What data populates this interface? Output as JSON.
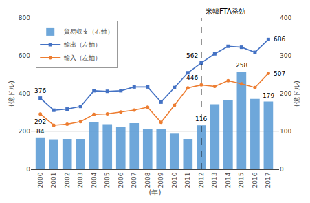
{
  "chart_data": {
    "type": "bar",
    "x": [
      2000,
      2001,
      2002,
      2003,
      2004,
      2005,
      2006,
      2007,
      2008,
      2009,
      2010,
      2011,
      2012,
      2013,
      2014,
      2015,
      2016,
      2017
    ],
    "xlim": [
      1999.3,
      2017.8
    ],
    "xticks": [
      2000,
      2001,
      2002,
      2003,
      2004,
      2005,
      2006,
      2007,
      2008,
      2009,
      2010,
      2011,
      2012,
      2013,
      2014,
      2015,
      2016,
      2017
    ],
    "xlabel": "(年)",
    "ylabel": "(億ドル)",
    "y2label": "(億ドル)",
    "ylim": [
      0,
      800
    ],
    "yticks": [
      0,
      200,
      400,
      600,
      800
    ],
    "y2lim": [
      0,
      400
    ],
    "y2ticks": [
      0,
      100,
      200,
      300,
      400
    ],
    "grid": true,
    "legend": "upper left",
    "series": [
      {
        "name": "貿易収支（右軸）",
        "type": "bar",
        "axis": "y2",
        "color": "#5b9bd5",
        "values": [
          84,
          79,
          80,
          80,
          125,
          119,
          112,
          122,
          107,
          107,
          94,
          80,
          116,
          172,
          182,
          258,
          186,
          179
        ]
      },
      {
        "name": "輸出（左軸）",
        "type": "line",
        "color": "#4472c4",
        "marker": "square",
        "values": [
          376,
          312,
          318,
          332,
          415,
          412,
          415,
          435,
          435,
          355,
          432,
          510,
          562,
          610,
          650,
          645,
          618,
          686
        ]
      },
      {
        "name": "輸入（左軸）",
        "type": "line",
        "color": "#ed7d31",
        "marker": "circle",
        "values": [
          292,
          233,
          238,
          252,
          290,
          293,
          303,
          313,
          328,
          248,
          338,
          430,
          446,
          438,
          468,
          452,
          432,
          507
        ]
      }
    ],
    "annotations": [
      {
        "text": "米韓FTA発効",
        "x": 2012,
        "line_style": "dashed"
      },
      {
        "text": "376",
        "x": 2000,
        "series": "輸出（左軸）"
      },
      {
        "text": "292",
        "x": 2000,
        "series": "輸入（左軸）"
      },
      {
        "text": "84",
        "x": 2000,
        "series": "貿易収支（右軸）"
      },
      {
        "text": "562",
        "x": 2012,
        "series": "輸出（左軸）"
      },
      {
        "text": "446",
        "x": 2012,
        "series": "輸入（左軸）"
      },
      {
        "text": "116",
        "x": 2012,
        "series": "貿易収支（右軸）"
      },
      {
        "text": "258",
        "x": 2015,
        "series": "貿易収支（右軸）"
      },
      {
        "text": "686",
        "x": 2017,
        "series": "輸出（左軸）"
      },
      {
        "text": "507",
        "x": 2017,
        "series": "輸入（左軸）"
      },
      {
        "text": "179",
        "x": 2017,
        "series": "貿易収支（右軸）"
      }
    ]
  }
}
